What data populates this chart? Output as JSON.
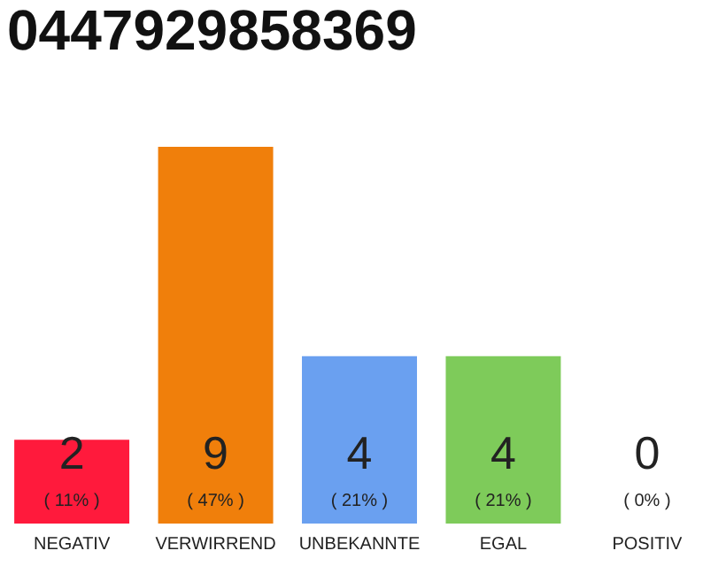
{
  "chart_data": {
    "type": "bar",
    "title": "0447929858369",
    "categories": [
      "NEGATIV",
      "VERWIRREND",
      "UNBEKANNTE",
      "EGAL",
      "POSITIV"
    ],
    "values": [
      2,
      9,
      4,
      4,
      0
    ],
    "colors": [
      "#ff1a3c",
      "#f07f0b",
      "#6aa0f0",
      "#7ecb5a",
      "#e0e0e0"
    ],
    "value_labels": [
      "2",
      "9",
      "4",
      "4",
      "0"
    ],
    "annotations": [
      "( 11% )",
      "( 47% )",
      "( 21% )",
      "( 21% )",
      "( 0% )"
    ],
    "tick_labels": "x"
  }
}
